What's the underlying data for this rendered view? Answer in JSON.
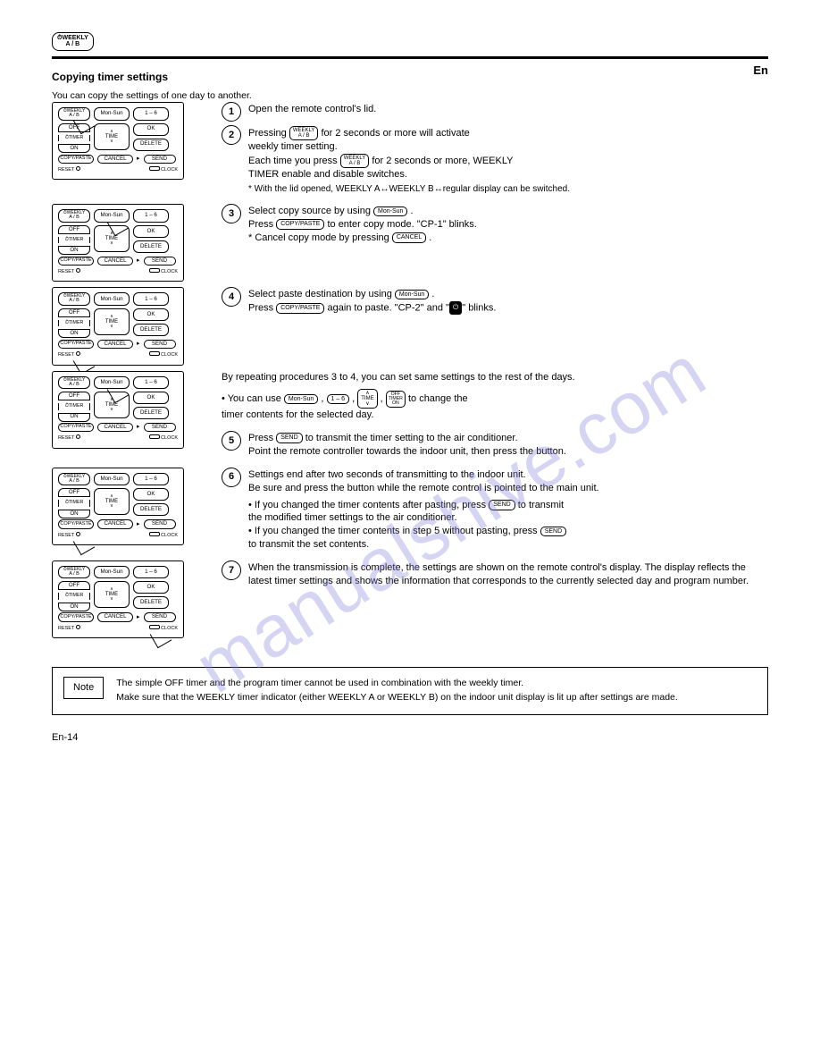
{
  "watermark": "manualshive.com",
  "header_button_line1": "WEEKLY",
  "header_button_line2": "A / B",
  "section_title": "Copying timer settings",
  "section_subtitle": "You can copy the settings of one day to another.",
  "en_heading": "En",
  "remote_labels": {
    "weekly": "WEEKLY",
    "ab": "A / B",
    "monsun": "Mon-Sun",
    "oneSix": "1 – 6",
    "off": "OFF",
    "timer": "TIMER",
    "on": "ON",
    "time": "TIME",
    "ok": "OK",
    "delete": "DELETE",
    "copypaste": "COPY/PASTE",
    "cancel": "CANCEL",
    "send": "SEND",
    "reset": "RESET",
    "clock": "CLOCK"
  },
  "steps": [
    {
      "num": "1",
      "text": "Open the remote control's lid."
    },
    {
      "num": "2",
      "lines": [
        {
          "pre": "Pressing ",
          "btn_stack": [
            "WEEKLY",
            "A / B"
          ],
          "post": " for 2 seconds or more will activate"
        },
        {
          "plain": "weekly timer setting."
        },
        {
          "pre": "Each time you press ",
          "btn_stack": [
            "WEEKLY",
            "A / B"
          ],
          "post": " for 2 seconds or more, WEEKLY"
        },
        {
          "plain": "TIMER enable and disable switches."
        }
      ],
      "note": "With the lid opened, WEEKLY A↔WEEKLY B↔regular display can be switched."
    },
    {
      "num": "3",
      "lines": [
        {
          "pre": "Select copy source by using ",
          "btn": "Mon-Sun",
          "post": " ."
        },
        {
          "pre": "Press ",
          "btn": "COPY/PASTE",
          "post": " to enter copy mode. \"CP-1\" blinks."
        },
        {
          "pre": "* Cancel copy mode by pressing ",
          "btn": "CANCEL",
          "post": " ."
        }
      ]
    },
    {
      "num": "4",
      "lines": [
        {
          "pre": "Select paste destination by using ",
          "btn": "Mon-Sun",
          "post": " ."
        },
        {
          "pre": "Press ",
          "btn": "COPY/PASTE",
          "post": " again to paste. \"CP-2\" and \"",
          "icon": "clock",
          "post2": "\" blinks."
        }
      ]
    }
  ],
  "midtext": {
    "intro": "By repeating procedures 3 to 4, you can set same settings to the rest of the days.",
    "bullets": [
      {
        "tokens": [
          {
            "t": "• You can use "
          },
          {
            "btn": "Mon-Sun"
          },
          {
            "t": " , "
          },
          {
            "btn": "1 – 6"
          },
          {
            "t": " , "
          },
          {
            "btn_stack": [
              "∧",
              "TIME",
              "∨"
            ]
          },
          {
            "t": " , "
          },
          {
            "btn_compound": [
              "OFF",
              "TIMER",
              "ON"
            ]
          },
          {
            "t": " to change the"
          }
        ]
      },
      {
        "t": "   timer contents for the selected day."
      }
    ]
  },
  "step5": {
    "num": "5",
    "lines": [
      {
        "pre": "Press ",
        "btn": "SEND",
        "post": " to transmit the timer setting to the air conditioner."
      },
      {
        "plain": "Point the remote controller towards the indoor unit, then press the button."
      }
    ]
  },
  "step6": {
    "num": "6",
    "lines": [
      {
        "plain": "Settings end after two seconds of transmitting to the indoor unit."
      },
      {
        "plain": "Be sure and press the button while the remote control is pointed to the main unit."
      }
    ],
    "bullets": [
      {
        "tokens": [
          {
            "t": "• If you changed the timer contents after pasting, press "
          },
          {
            "btn": "SEND"
          },
          {
            "t": " to transmit"
          }
        ]
      },
      {
        "t": "   the modified timer settings to the air conditioner."
      },
      {
        "tokens": [
          {
            "t": "• If you changed the timer contents in step 5 without pasting, press "
          },
          {
            "btn": "SEND"
          }
        ]
      },
      {
        "t": "   to transmit the set contents."
      }
    ]
  },
  "step7": {
    "num": "7",
    "text": "When the transmission is complete, the settings are shown on the remote control's display. The display reflects the latest timer settings and shows the information that corresponds to the currently selected day and program number."
  },
  "note": {
    "label": "Note",
    "body": "The simple OFF timer and the program timer cannot be used in combination with the weekly timer.\nMake sure that the WEEKLY timer indicator (either WEEKLY A or WEEKLY B) on the indoor unit display is lit up after settings are made."
  },
  "page_number": "En-14"
}
